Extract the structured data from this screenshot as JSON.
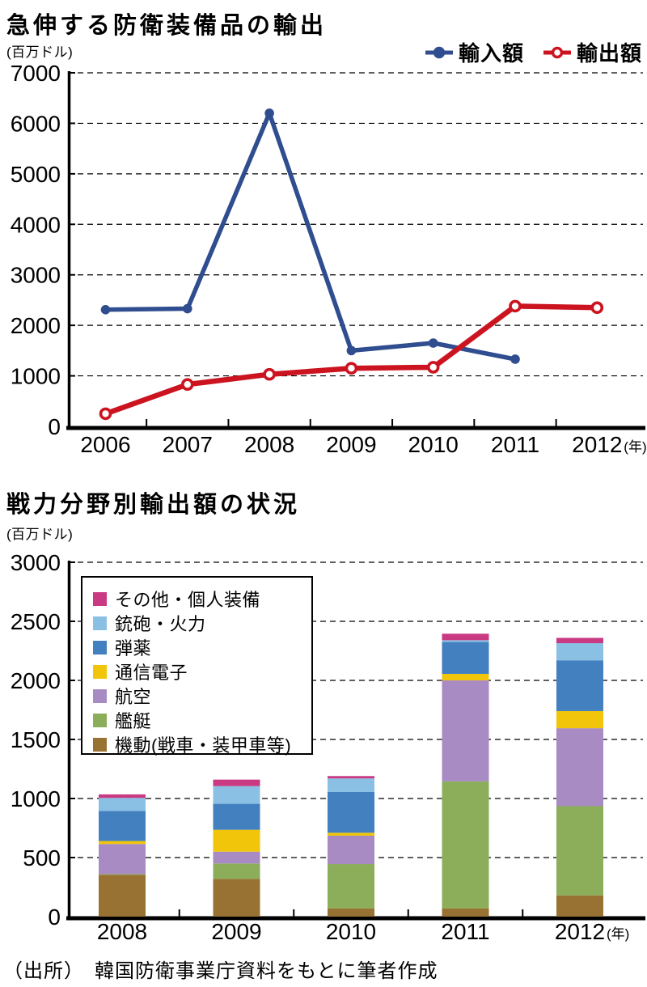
{
  "line_chart": {
    "title": "急伸する防衛装備品の輸出",
    "unit": "(百万ドル)",
    "year_unit": "(年)"
  },
  "bar_chart": {
    "title": "戦力分野別輸出額の状況",
    "unit": "(百万ドル)",
    "year_unit": "(年)"
  },
  "page": {
    "source_note": "（出所）　韓国防衛事業庁資料をもとに筆者作成"
  },
  "chart_data": [
    {
      "type": "line",
      "title": "急伸する防衛装備品の輸出",
      "ylabel": "百万ドル",
      "x_unit": "年",
      "x": [
        "2006",
        "2007",
        "2008",
        "2009",
        "2010",
        "2011",
        "2012"
      ],
      "ylim": [
        0,
        7000
      ],
      "ytick_step": 1000,
      "grid": "horizontal-dashed",
      "legend_position": "top-right",
      "series": [
        {
          "name": "輸入額",
          "color": "#2f4d8f",
          "marker": "filled-circle",
          "values": [
            2310,
            2330,
            6200,
            1500,
            1650,
            1330,
            null
          ]
        },
        {
          "name": "輸出額",
          "color": "#cc1420",
          "marker": "open-circle",
          "values": [
            250,
            830,
            1030,
            1150,
            1170,
            2380,
            2350
          ]
        }
      ]
    },
    {
      "type": "bar",
      "stacked": true,
      "stack_order": "bottom-to-top",
      "title": "戦力分野別輸出額の状況",
      "ylabel": "百万ドル",
      "x_unit": "年",
      "categories": [
        "2008",
        "2009",
        "2010",
        "2011",
        "2012"
      ],
      "ylim": [
        0,
        3000
      ],
      "ytick_step": 500,
      "grid": "horizontal-dashed",
      "legend_position": "top-left-inset",
      "series": [
        {
          "name": "機動(戦車・装甲車等)",
          "color": "#987233",
          "values": [
            355,
            320,
            70,
            70,
            180
          ]
        },
        {
          "name": "艦艇",
          "color": "#8cad5a",
          "values": [
            5,
            130,
            375,
            1075,
            755
          ]
        },
        {
          "name": "航空",
          "color": "#a88bc2",
          "values": [
            255,
            100,
            240,
            855,
            660
          ]
        },
        {
          "name": "通信電子",
          "color": "#f0c50a",
          "values": [
            25,
            185,
            25,
            55,
            145
          ]
        },
        {
          "name": "弾薬",
          "color": "#4380c0",
          "values": [
            255,
            220,
            345,
            270,
            430
          ]
        },
        {
          "name": "銃砲・火力",
          "color": "#8ac0e4",
          "values": [
            110,
            150,
            115,
            15,
            145
          ]
        },
        {
          "name": "その他・個人装備",
          "color": "#c93a82",
          "values": [
            30,
            55,
            20,
            55,
            45
          ]
        }
      ]
    }
  ]
}
